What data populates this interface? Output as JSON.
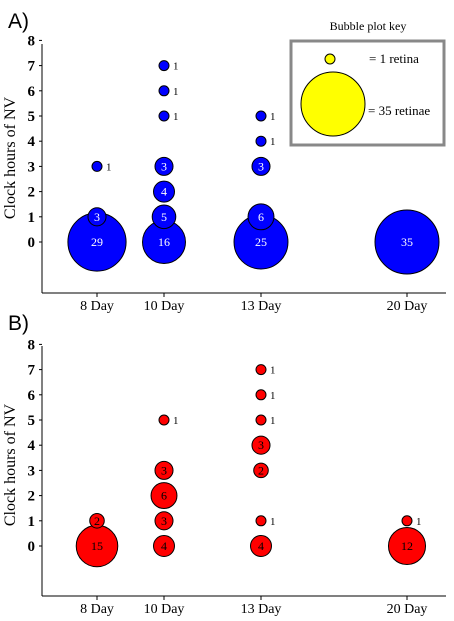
{
  "chart_data": [
    {
      "type": "scatter",
      "panel_label": "A)",
      "ylabel": "Clock hours of NV",
      "yticks": [
        0,
        1,
        2,
        3,
        4,
        5,
        6,
        7,
        8
      ],
      "ylim": [
        -2,
        8
      ],
      "categories": [
        "8 Day",
        "10 Day",
        "13 Day",
        "20 Day"
      ],
      "bubble_color": "#0000ff",
      "label_color": "#ffffff",
      "grid": false,
      "points": [
        {
          "x": "8 Day",
          "y": 0,
          "count": 29
        },
        {
          "x": "8 Day",
          "y": 1,
          "count": 3
        },
        {
          "x": "8 Day",
          "y": 3,
          "count": 1
        },
        {
          "x": "10 Day",
          "y": 0,
          "count": 16
        },
        {
          "x": "10 Day",
          "y": 1,
          "count": 5
        },
        {
          "x": "10 Day",
          "y": 2,
          "count": 4
        },
        {
          "x": "10 Day",
          "y": 3,
          "count": 3
        },
        {
          "x": "10 Day",
          "y": 5,
          "count": 1
        },
        {
          "x": "10 Day",
          "y": 6,
          "count": 1
        },
        {
          "x": "10 Day",
          "y": 7,
          "count": 1
        },
        {
          "x": "13 Day",
          "y": 0,
          "count": 25
        },
        {
          "x": "13 Day",
          "y": 1,
          "count": 6
        },
        {
          "x": "13 Day",
          "y": 3,
          "count": 3
        },
        {
          "x": "13 Day",
          "y": 4,
          "count": 1
        },
        {
          "x": "13 Day",
          "y": 5,
          "count": 1
        },
        {
          "x": "20 Day",
          "y": 0,
          "count": 35
        }
      ],
      "legend": {
        "title": "Bubble plot key",
        "placement": "top-right",
        "color": "#ffff00",
        "entries": [
          {
            "count": 1,
            "label": "= 1 retina"
          },
          {
            "count": 35,
            "label": "= 35 retinae"
          }
        ]
      }
    },
    {
      "type": "scatter",
      "panel_label": "B)",
      "ylabel": "Clock hours of NV",
      "yticks": [
        0,
        1,
        2,
        3,
        4,
        5,
        6,
        7,
        8
      ],
      "ylim": [
        -2,
        8
      ],
      "categories": [
        "8 Day",
        "10 Day",
        "13 Day",
        "20 Day"
      ],
      "bubble_color": "#ff0000",
      "label_color": "#000000",
      "grid": false,
      "points": [
        {
          "x": "8 Day",
          "y": 0,
          "count": 15
        },
        {
          "x": "8 Day",
          "y": 1,
          "count": 2
        },
        {
          "x": "10 Day",
          "y": 0,
          "count": 4
        },
        {
          "x": "10 Day",
          "y": 1,
          "count": 3
        },
        {
          "x": "10 Day",
          "y": 2,
          "count": 6
        },
        {
          "x": "10 Day",
          "y": 3,
          "count": 3
        },
        {
          "x": "10 Day",
          "y": 5,
          "count": 1
        },
        {
          "x": "13 Day",
          "y": 0,
          "count": 4
        },
        {
          "x": "13 Day",
          "y": 1,
          "count": 1
        },
        {
          "x": "13 Day",
          "y": 3,
          "count": 2
        },
        {
          "x": "13 Day",
          "y": 4,
          "count": 3
        },
        {
          "x": "13 Day",
          "y": 5,
          "count": 1
        },
        {
          "x": "13 Day",
          "y": 6,
          "count": 1
        },
        {
          "x": "13 Day",
          "y": 7,
          "count": 1
        },
        {
          "x": "20 Day",
          "y": 0,
          "count": 12
        },
        {
          "x": "20 Day",
          "y": 1,
          "count": 1
        }
      ]
    }
  ]
}
